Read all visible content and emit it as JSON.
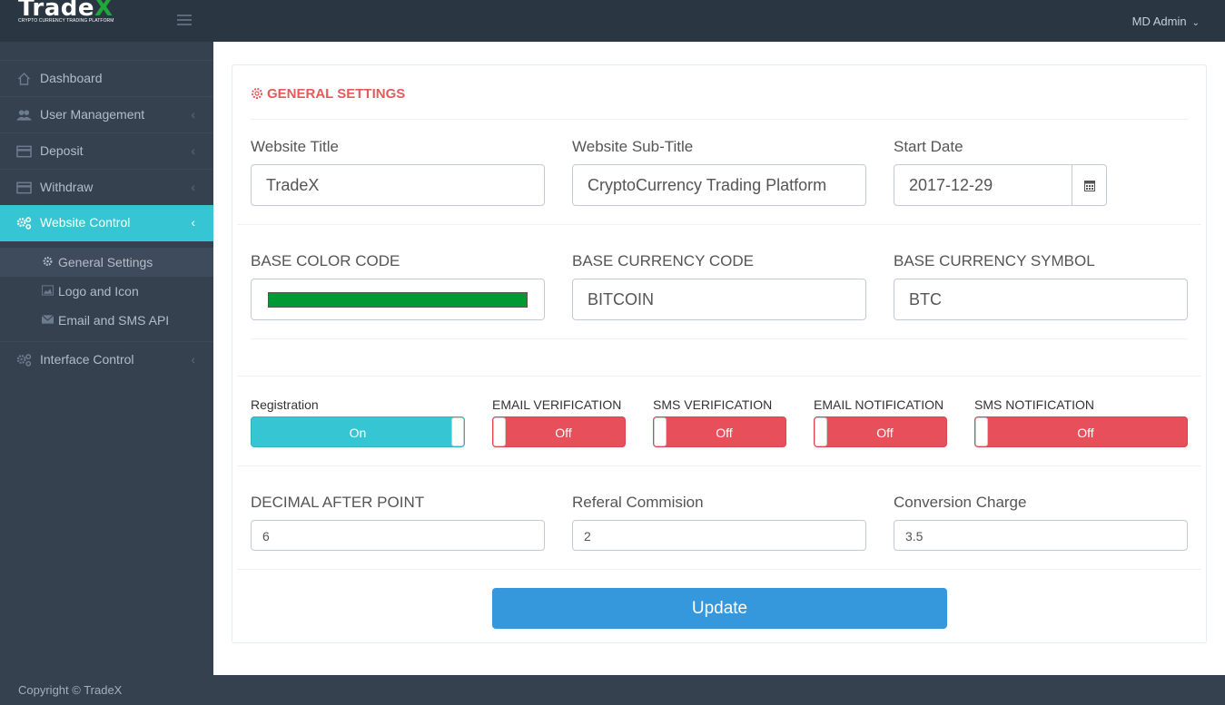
{
  "app": {
    "logo_main": "Trade",
    "logo_accent": "X",
    "logo_subtitle": "CRYPTO CURRENCY TRADING PLATFORM",
    "user_name": "MD Admin",
    "footer": "Copyright © TradeX"
  },
  "sidebar": {
    "items": [
      {
        "label": "Dashboard",
        "icon": "home-icon"
      },
      {
        "label": "User Management",
        "icon": "users-icon"
      },
      {
        "label": "Deposit",
        "icon": "credit-card-icon"
      },
      {
        "label": "Withdraw",
        "icon": "credit-card-icon"
      },
      {
        "label": "Website Control",
        "icon": "cogs-icon"
      },
      {
        "label": "Interface Control",
        "icon": "cogs-icon"
      }
    ],
    "sub_items": [
      {
        "label": "General Settings",
        "icon": "gear-icon"
      },
      {
        "label": "Logo and Icon",
        "icon": "image-icon"
      },
      {
        "label": "Email and SMS API",
        "icon": "envelope-icon"
      }
    ]
  },
  "panel": {
    "title": "GENERAL SETTINGS",
    "website_title_label": "Website Title",
    "website_title_value": "TradeX",
    "website_subtitle_label": "Website Sub-Title",
    "website_subtitle_value": "CryptoCurrency Trading Platform",
    "start_date_label": "Start Date",
    "start_date_value": "2017-12-29",
    "base_color_label": "BASE COLOR CODE",
    "base_color_value": "#009933",
    "base_currency_code_label": "BASE CURRENCY CODE",
    "base_currency_code_value": "BITCOIN",
    "base_currency_symbol_label": "BASE CURRENCY SYMBOL",
    "base_currency_symbol_value": "BTC",
    "toggles": [
      {
        "label": "Registration",
        "state": "On"
      },
      {
        "label": "EMAIL VERIFICATION",
        "state": "Off"
      },
      {
        "label": "SMS VERIFICATION",
        "state": "Off"
      },
      {
        "label": "EMAIL NOTIFICATION",
        "state": "Off"
      },
      {
        "label": "SMS NOTIFICATION",
        "state": "Off"
      }
    ],
    "decimal_label": "DECIMAL AFTER POINT",
    "decimal_value": "6",
    "referral_label": "Referal Commision",
    "referral_value": "2",
    "conversion_label": "Conversion Charge",
    "conversion_value": "3.5",
    "update_label": "Update"
  },
  "colors": {
    "accent": "#36c6d3",
    "danger": "#e7505a",
    "primary": "#3598dc",
    "title": "#e35b5a"
  }
}
